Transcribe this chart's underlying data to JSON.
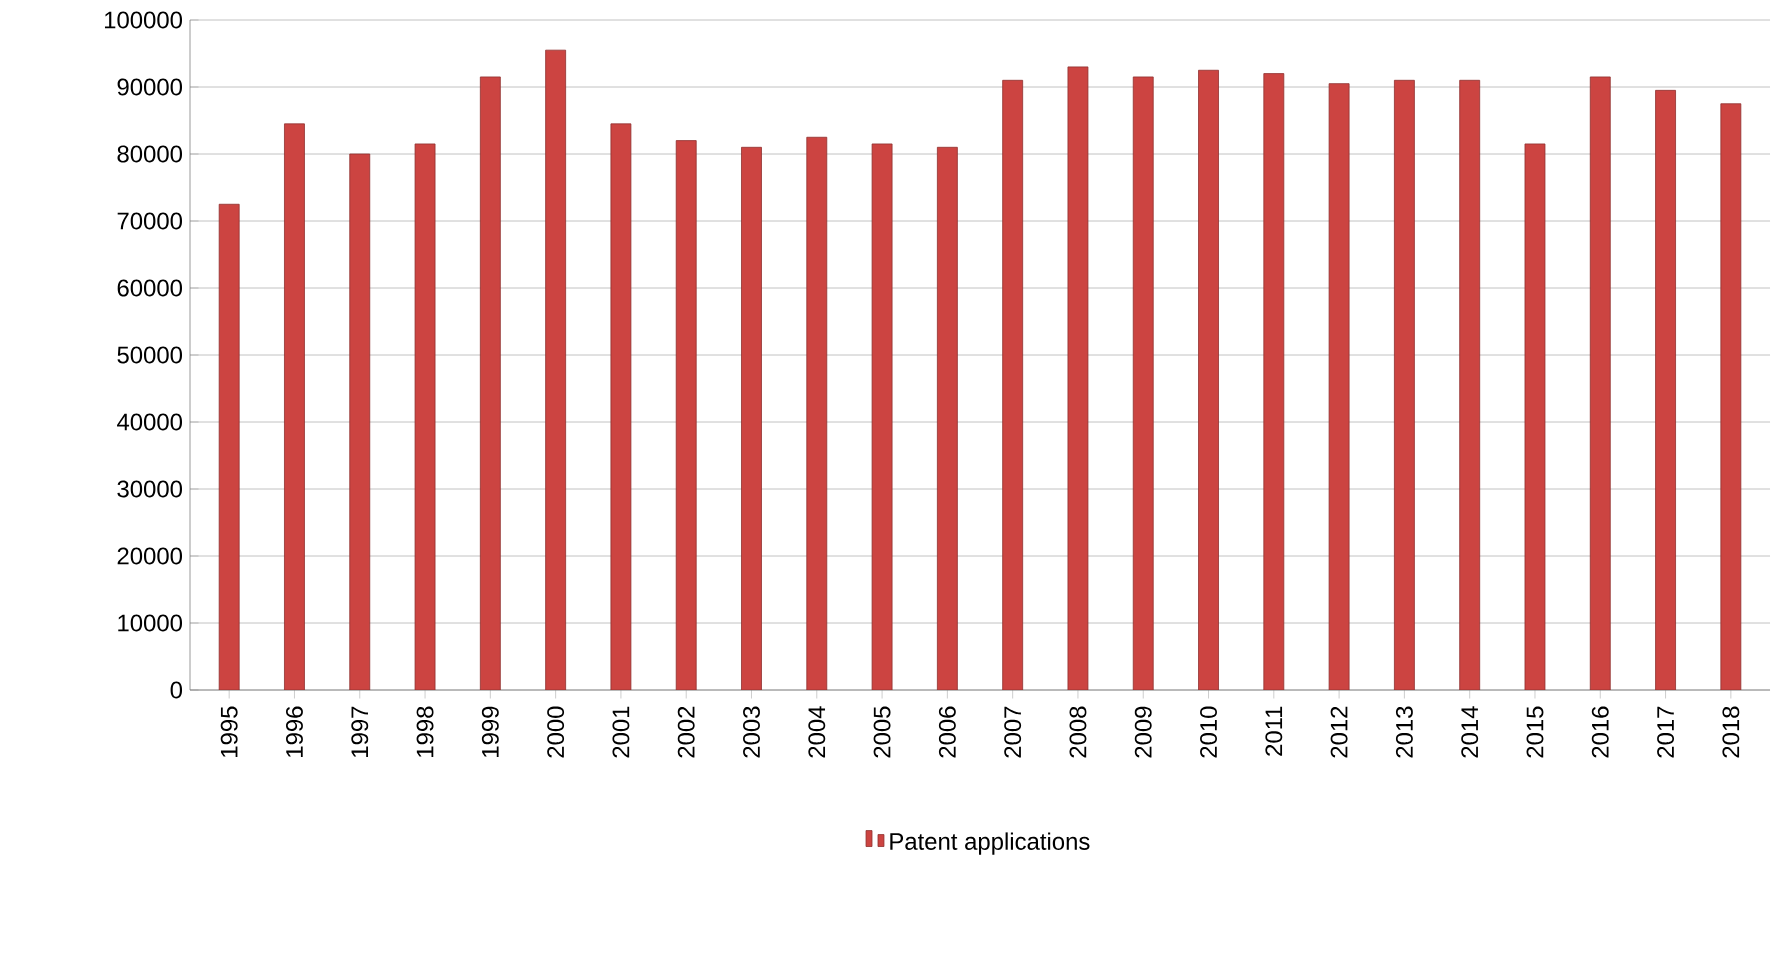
{
  "chart_data": {
    "type": "bar",
    "categories": [
      "1995",
      "1996",
      "1997",
      "1998",
      "1999",
      "2000",
      "2001",
      "2002",
      "2003",
      "2004",
      "2005",
      "2006",
      "2007",
      "2008",
      "2009",
      "2010",
      "2011",
      "2012",
      "2013",
      "2014",
      "2015",
      "2016",
      "2017",
      "2018"
    ],
    "series": [
      {
        "name": "Patent applications",
        "color": "#cc4441",
        "values": [
          72500,
          84500,
          80000,
          81500,
          91500,
          95500,
          84500,
          82000,
          81000,
          82500,
          81500,
          81000,
          91000,
          93000,
          91500,
          92500,
          92000,
          90500,
          91000,
          91000,
          81500,
          91500,
          89500,
          87500
        ]
      }
    ],
    "ylim": [
      0,
      100000
    ],
    "yticks": [
      0,
      10000,
      20000,
      30000,
      40000,
      50000,
      60000,
      70000,
      80000,
      90000,
      100000
    ],
    "grid": "y",
    "legend": "bottom"
  }
}
